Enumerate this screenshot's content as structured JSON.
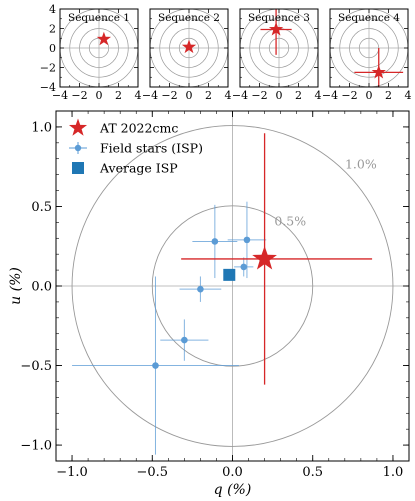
{
  "chart_data": [
    {
      "type": "scatter",
      "panel": "sequence",
      "title": "Sequence 1",
      "xlim": [
        -4,
        4
      ],
      "ylim": [
        -4,
        4
      ],
      "xticks": [
        "−4",
        "−2",
        "0",
        "2",
        "4"
      ],
      "yticks": [
        "4",
        "2",
        "0",
        "−2",
        "−4"
      ],
      "circle_radii": [
        1,
        2,
        3,
        4
      ],
      "point": {
        "q": 0.5,
        "u": 0.9,
        "q_err": 0,
        "u_err": 0
      }
    },
    {
      "type": "scatter",
      "panel": "sequence",
      "title": "Sequence 2",
      "xlim": [
        -4,
        4
      ],
      "ylim": [
        -4,
        4
      ],
      "xticks": [
        "−4",
        "−2",
        "0",
        "2",
        "4"
      ],
      "circle_radii": [
        1,
        2,
        3,
        4
      ],
      "point": {
        "q": 0.0,
        "u": 0.1,
        "q_err": 0,
        "u_err": 0
      }
    },
    {
      "type": "scatter",
      "panel": "sequence",
      "title": "Sequence 3",
      "xlim": [
        -4,
        4
      ],
      "ylim": [
        -4,
        4
      ],
      "xticks": [
        "−4",
        "−2",
        "0",
        "2",
        "4"
      ],
      "circle_radii": [
        1,
        2,
        3,
        4
      ],
      "point": {
        "q": -0.3,
        "u": 1.9,
        "q_err": 1.6,
        "u_err": 2.6
      }
    },
    {
      "type": "scatter",
      "panel": "sequence",
      "title": "Sequence 4",
      "xlim": [
        -4,
        4
      ],
      "ylim": [
        -4,
        4
      ],
      "xticks": [
        "−4",
        "−2",
        "0",
        "2",
        "4"
      ],
      "circle_radii": [
        1,
        2,
        3,
        4
      ],
      "point": {
        "q": 1.0,
        "u": -2.5,
        "q_err": 2.5,
        "u_err": 2.5
      }
    },
    {
      "type": "scatter",
      "panel": "main",
      "xlabel": "q (%)",
      "ylabel": "u (%)",
      "xlim": [
        -1.1,
        1.1
      ],
      "ylim": [
        -1.1,
        1.1
      ],
      "xticks": [
        -1.0,
        -0.5,
        0.0,
        0.5,
        1.0
      ],
      "yticks": [
        1.0,
        0.5,
        0.0,
        -0.5,
        -1.0
      ],
      "xtick_labels": [
        "−1.0",
        "−0.5",
        "0.0",
        "0.5",
        "1.0"
      ],
      "ytick_labels": [
        "1.0",
        "0.5",
        "0.0",
        "−0.5",
        "−1.0"
      ],
      "circles": [
        {
          "radius": 0.5,
          "label": "0.5%"
        },
        {
          "radius": 1.0,
          "label": "1.0%"
        }
      ],
      "legend": {
        "placement": "top-left",
        "entries": [
          "AT 2022cmc",
          "Field stars (ISP)",
          "Average ISP"
        ]
      },
      "target": {
        "q": 0.2,
        "u": 0.17,
        "q_err_low": 0.52,
        "q_err_high": 0.67,
        "u_err_low": 0.79,
        "u_err_high": 0.79
      },
      "field_stars": [
        {
          "q": -0.11,
          "u": 0.28,
          "q_err": 0.14,
          "u_err": 0.23
        },
        {
          "q": 0.09,
          "u": 0.29,
          "q_err": 0.12,
          "u_err": 0.24
        },
        {
          "q": 0.07,
          "u": 0.12,
          "q_err": 0.06,
          "u_err": 0.06
        },
        {
          "q": -0.2,
          "u": -0.02,
          "q_err": 0.13,
          "u_err": 0.08
        },
        {
          "q": -0.3,
          "u": -0.34,
          "q_err": 0.15,
          "u_err": 0.13
        },
        {
          "q": -0.48,
          "u": -0.5,
          "q_err": 0.52,
          "u_err": 0.56
        }
      ],
      "average_isp": {
        "q": -0.02,
        "u": 0.07,
        "q_err": 0.03,
        "u_err": 0.03
      },
      "colors": {
        "target": "#d62728",
        "field": "#5b9bd5",
        "average": "#1f77b4",
        "circles": "#999999",
        "axes": "#aaaaaa"
      }
    }
  ]
}
